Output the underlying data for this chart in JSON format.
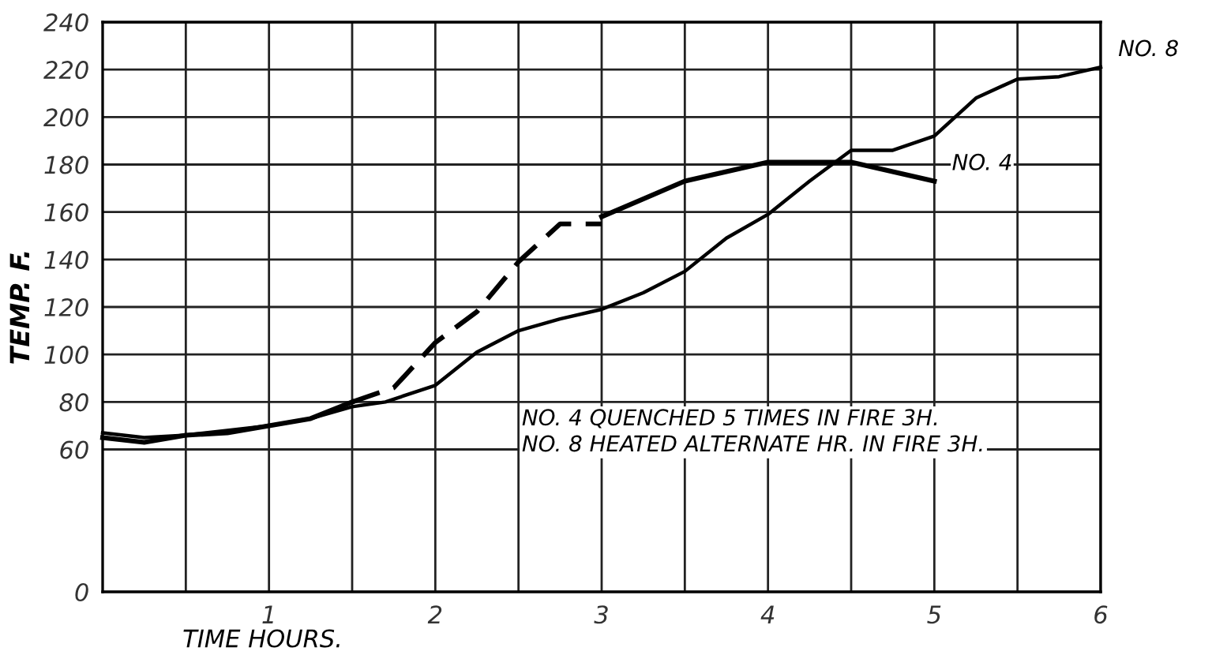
{
  "chart_data": {
    "type": "line",
    "xlabel": "TIME HOURS.",
    "ylabel": "TEMP. F.",
    "xlim": [
      0,
      6
    ],
    "ylim": [
      0,
      240
    ],
    "xticks": [
      {
        "value": 0.5,
        "label": null
      },
      1,
      {
        "value": 1.5,
        "label": null
      },
      2,
      {
        "value": 2.5,
        "label": null
      },
      3,
      {
        "value": 3.5,
        "label": null
      },
      4,
      {
        "value": 4.5,
        "label": null
      },
      5,
      {
        "value": 5.5,
        "label": null
      },
      6
    ],
    "yticks": [
      0,
      60,
      80,
      100,
      120,
      140,
      160,
      180,
      200,
      220,
      240
    ],
    "grid": true,
    "legend": false,
    "marker": "none",
    "series": [
      {
        "name": "NO. 4",
        "color": "#000000",
        "line_style": "solid",
        "x": [
          0,
          0.25,
          0.5,
          0.75,
          1.0,
          1.25,
          1.5,
          2.25,
          3.0,
          3.5,
          4.0,
          4.5,
          5.0
        ],
        "values": [
          65,
          63,
          66,
          67,
          70,
          73,
          80,
          null,
          158,
          173,
          181,
          181,
          173
        ]
      },
      {
        "color": "#000000",
        "line_style": "dashed",
        "x": [
          1.5,
          1.75,
          2.0,
          2.25,
          2.5,
          2.75,
          3.0
        ],
        "values": [
          80,
          86,
          105,
          118,
          139,
          155,
          155
        ]
      },
      {
        "name": "NO. 8",
        "color": "#000000",
        "line_style": "solid",
        "x": [
          0,
          0.25,
          0.5,
          0.75,
          1.0,
          1.25,
          1.5,
          1.7,
          2.0,
          2.25,
          2.5,
          2.75,
          3.0,
          3.25,
          3.5,
          3.75,
          4.0,
          4.25,
          4.5,
          4.75,
          5.0,
          5.25,
          5.5,
          5.75,
          6.0
        ],
        "values": [
          67,
          65,
          66,
          68,
          70,
          73,
          78,
          80,
          87,
          101,
          110,
          115,
          119,
          126,
          135,
          149,
          159,
          173,
          186,
          186,
          192,
          208,
          216,
          217,
          221
        ]
      }
    ],
    "annotations": [
      "NO. 4 QUENCHED 5 TIMES IN FIRE 3H.\nNO. 8 HEATED ALTERNATE HR. IN FIRE 3H."
    ]
  }
}
